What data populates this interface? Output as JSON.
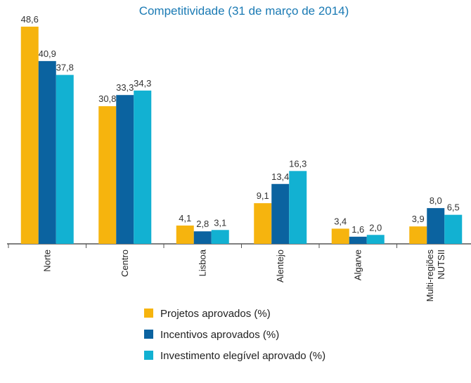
{
  "chart_data": {
    "type": "bar",
    "title": "Competitividade (31 de março de 2014)",
    "categories": [
      "Norte",
      "Centro",
      "Lisboa",
      "Alentejo",
      "Algarve",
      "Multi-regiões NUTSII"
    ],
    "series": [
      {
        "name": "Projetos aprovados (%)",
        "color": "#f6b40e",
        "values": [
          48.6,
          30.8,
          4.1,
          9.1,
          3.4,
          3.9
        ],
        "value_labels": [
          "48,6",
          "30,8",
          "4,1",
          "9,1",
          "3,4",
          "3,9"
        ]
      },
      {
        "name": "Incentivos aprovados (%)",
        "color": "#0b63a0",
        "values": [
          40.9,
          33.3,
          2.8,
          13.4,
          1.6,
          8.0
        ],
        "value_labels": [
          "40,9",
          "33,3",
          "2,8",
          "13,4",
          "1,6",
          "8,0"
        ]
      },
      {
        "name": "Investimento elegível aprovado (%)",
        "color": "#12b1d2",
        "values": [
          37.8,
          34.3,
          3.1,
          16.3,
          2.0,
          6.5
        ],
        "value_labels": [
          "37,8",
          "34,3",
          "3,1",
          "16,3",
          "2,0",
          "6,5"
        ]
      }
    ],
    "ylim": [
      0,
      50
    ]
  }
}
